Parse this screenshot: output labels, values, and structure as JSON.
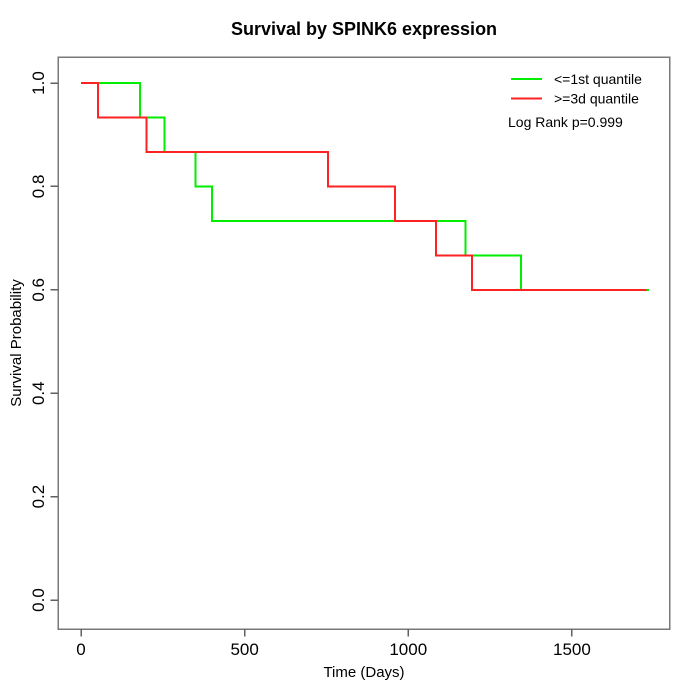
{
  "title": "Survival by SPINK6 expression",
  "axes": {
    "x": {
      "label": "Time (Days)",
      "tick_labels": [
        "0",
        "500",
        "1000",
        "1500"
      ],
      "tick_values": [
        0,
        500,
        1000,
        1500
      ]
    },
    "y": {
      "label": "Survival Probability",
      "tick_labels": [
        "0.0",
        "0.2",
        "0.4",
        "0.6",
        "0.8",
        "1.0"
      ],
      "tick_values": [
        0,
        0.2,
        0.4,
        0.6,
        0.8,
        1.0
      ]
    }
  },
  "legend": {
    "items": [
      {
        "label": "<=1st quantile",
        "color": "#00ee00"
      },
      {
        "label": ">=3d quantile",
        "color": "#ff2222"
      }
    ],
    "stat_note": "Log Rank p=0.999"
  },
  "chart_data": {
    "type": "line",
    "subtype": "kaplan_meier_step",
    "title": "Survival by SPINK6 expression",
    "xlabel": "Time (Days)",
    "ylabel": "Survival Probability",
    "xlim": [
      -70,
      1800
    ],
    "ylim": [
      -0.05,
      1.05
    ],
    "x_ticks": [
      0,
      500,
      1000,
      1500
    ],
    "y_ticks": [
      0,
      0.2,
      0.4,
      0.6,
      0.8,
      1.0
    ],
    "grid": false,
    "legend_position": "top-right",
    "annotation": "Log Rank p=0.999",
    "series": [
      {
        "name": "<=1st quantile",
        "color": "#00ee00",
        "step_points": [
          [
            0,
            1.0
          ],
          [
            180,
            1.0
          ],
          [
            180,
            0.9333
          ],
          [
            255,
            0.9333
          ],
          [
            255,
            0.8667
          ],
          [
            350,
            0.8667
          ],
          [
            350,
            0.8
          ],
          [
            400,
            0.8
          ],
          [
            400,
            0.7333
          ],
          [
            1175,
            0.7333
          ],
          [
            1175,
            0.6667
          ],
          [
            1345,
            0.6667
          ],
          [
            1345,
            0.6
          ],
          [
            1735,
            0.6
          ]
        ]
      },
      {
        "name": ">=3d quantile",
        "color": "#ff2222",
        "step_points": [
          [
            0,
            1.0
          ],
          [
            52,
            1.0
          ],
          [
            52,
            0.9333
          ],
          [
            200,
            0.9333
          ],
          [
            200,
            0.8667
          ],
          [
            755,
            0.8667
          ],
          [
            755,
            0.8
          ],
          [
            960,
            0.8
          ],
          [
            960,
            0.7333
          ],
          [
            1085,
            0.7333
          ],
          [
            1085,
            0.6667
          ],
          [
            1195,
            0.6667
          ],
          [
            1195,
            0.6
          ],
          [
            1728,
            0.6
          ]
        ]
      }
    ]
  }
}
